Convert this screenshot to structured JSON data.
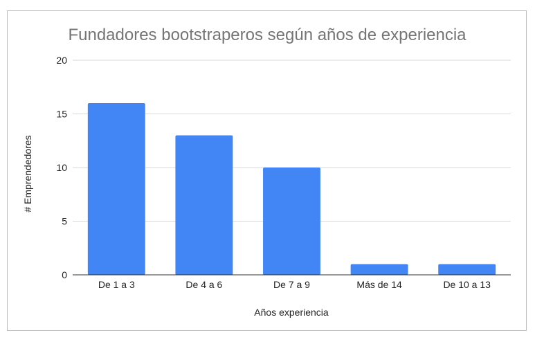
{
  "chart_data": {
    "type": "bar",
    "title": "Fundadores bootstraperos según años de experiencia",
    "xlabel": "Años experiencia",
    "ylabel": "# Emprendedores",
    "categories": [
      "De 1 a 3",
      "De 4 a 6",
      "De 7 a 9",
      "Más de 14",
      "De 10 a 13"
    ],
    "values": [
      16,
      13,
      10,
      1,
      1
    ],
    "ylim": [
      0,
      20
    ],
    "yticks": [
      0,
      5,
      10,
      15,
      20
    ],
    "grid": true,
    "legend": "none",
    "bar_color": "#4285f4",
    "grid_color": "#d9d9d9",
    "title_color": "#757575"
  }
}
